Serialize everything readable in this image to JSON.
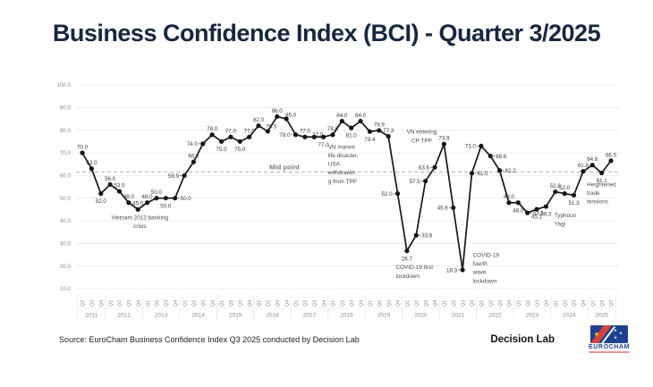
{
  "title": "Business Confidence Index (BCI) - Quarter 3/2025",
  "source_note": "Source: EuroCham Business Confidence Index Q3 2025 conducted by Decision Lab",
  "footer": {
    "decision_lab": "Decision Lab",
    "eurocham": "EUROCHAM"
  },
  "colors": {
    "title": "#17273f",
    "line": "#161616",
    "grid": "#eaeaea",
    "axis_text": "#8a8a8a",
    "annotation_text": "#4a4a4a",
    "midpoint_line": "#b5b5b5",
    "eurocham_blue": "#1f418f",
    "eurocham_red": "#d6443c"
  },
  "chart_data": {
    "type": "line",
    "title": "Business Confidence Index (BCI) - Quarter 3/2025",
    "xlabel": "",
    "ylabel": "",
    "ylim": [
      10,
      100
    ],
    "ytick_step": 10,
    "grid": true,
    "legend": "none",
    "quarters": [
      "Q2",
      "Q3",
      "Q4",
      "Q1",
      "Q2",
      "Q3",
      "Q4",
      "Q1",
      "Q2",
      "Q3",
      "Q4",
      "Q1",
      "Q2",
      "Q3",
      "Q4",
      "Q1",
      "Q2",
      "Q3",
      "Q4",
      "Q1",
      "Q2",
      "Q3",
      "Q4",
      "Q1",
      "Q2",
      "Q3",
      "Q4",
      "Q1",
      "Q2",
      "Q3",
      "Q4",
      "Q1",
      "Q2",
      "Q3",
      "Q4",
      "Q1",
      "Q2",
      "Q3",
      "Q4",
      "Q1",
      "Q2",
      "Q3",
      "Q4",
      "Q1",
      "Q2",
      "Q3",
      "Q4",
      "Q1",
      "Q2",
      "Q3",
      "Q4",
      "Q1",
      "Q2",
      "Q3",
      "Q4",
      "Q1",
      "Q2",
      "Q3"
    ],
    "years": [
      {
        "label": "2011",
        "count": 3
      },
      {
        "label": "2012",
        "count": 4
      },
      {
        "label": "2013",
        "count": 4
      },
      {
        "label": "2014",
        "count": 4
      },
      {
        "label": "2015",
        "count": 4
      },
      {
        "label": "2016",
        "count": 4
      },
      {
        "label": "2017",
        "count": 4
      },
      {
        "label": "2018",
        "count": 4
      },
      {
        "label": "2019",
        "count": 4
      },
      {
        "label": "2020",
        "count": 4
      },
      {
        "label": "2021",
        "count": 4
      },
      {
        "label": "2022",
        "count": 4
      },
      {
        "label": "2023",
        "count": 4
      },
      {
        "label": "2024",
        "count": 4
      },
      {
        "label": "2025",
        "count": 3
      }
    ],
    "values": [
      70.0,
      63.0,
      52.0,
      56.0,
      53.0,
      48.0,
      45.0,
      48.0,
      50.0,
      50.0,
      50.0,
      59.9,
      66.0,
      74.0,
      78.0,
      75.0,
      77.0,
      75.0,
      77.0,
      82.0,
      79.5,
      86.0,
      85.0,
      78.0,
      77.0,
      77.0,
      77.0,
      78.0,
      84.0,
      81.0,
      84.0,
      79.4,
      79.9,
      77.3,
      52.0,
      26.7,
      33.6,
      57.5,
      63.6,
      73.9,
      45.8,
      18.3,
      61.0,
      73.0,
      68.6,
      62.2,
      48.0,
      48.0,
      43.5,
      45.1,
      46.3,
      52.8,
      52.0,
      51.3,
      61.8,
      64.6,
      61.1,
      66.5
    ],
    "label_pos": [
      "a",
      "a",
      "b",
      "a",
      "a",
      "a",
      "a",
      "a",
      "a",
      "b",
      "r",
      "l",
      "a",
      "l",
      "a",
      "b",
      "a",
      "b",
      "a",
      "a",
      "a",
      "a",
      "a",
      "l",
      "a",
      "a",
      "b",
      "a",
      "a",
      "b",
      "a",
      "b",
      "a",
      "a",
      "l",
      "b",
      "r",
      "l",
      "l",
      "a",
      "l",
      "l",
      "r",
      "l",
      "r",
      "r",
      "a",
      "b",
      "r",
      "b",
      "b",
      "a",
      "a",
      "b",
      "a",
      "a",
      "b",
      "a"
    ],
    "label_offsets": {
      "20": [
        4,
        1
      ],
      "22": [
        5,
        2
      ],
      "25": [
        4,
        4
      ]
    },
    "midpoint_line": {
      "value": 61.5,
      "label": "Mid point",
      "label_xi": 21.8
    },
    "annotations": [
      {
        "lines": [
          "Vietnam 2012 banking",
          "crisis"
        ],
        "xi": 6.2,
        "v": 40.6,
        "anchor": "middle"
      },
      {
        "lines": [
          "VN marine",
          "life disaster,",
          "USA",
          "withdrawin",
          "g from TPP"
        ],
        "xi": 26.5,
        "v": 71.8,
        "anchor": "start"
      },
      {
        "lines": [
          "VN entering",
          "CP TPP"
        ],
        "xi": 36.6,
        "v": 78.4,
        "anchor": "middle"
      },
      {
        "lines": [
          "COVID-19 first",
          "lockdown"
        ],
        "xi": 33.8,
        "v": 18.6,
        "anchor": "start"
      },
      {
        "lines": [
          "COVID-19",
          "fourth",
          "wave",
          "lockdown"
        ],
        "xi": 42.1,
        "v": 24.0,
        "anchor": "start"
      },
      {
        "lines": [
          "Typhoon",
          "Yagi"
        ],
        "xi": 50.9,
        "v": 41.6,
        "anchor": "start"
      },
      {
        "lines": [
          "Heightened",
          "trade",
          "tensions"
        ],
        "xi": 54.4,
        "v": 55.2,
        "anchor": "start"
      }
    ]
  }
}
